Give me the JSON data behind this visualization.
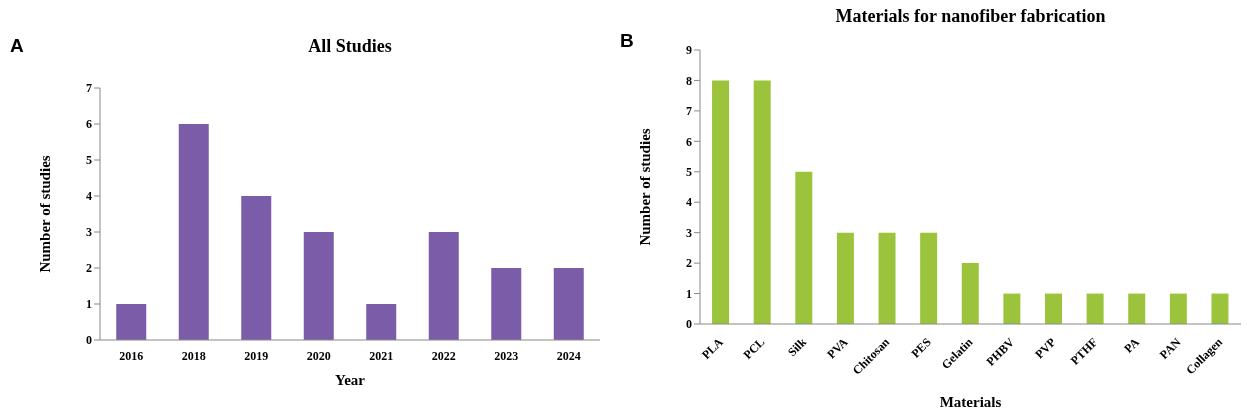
{
  "chart_data": [
    {
      "type": "bar",
      "title": "All Studies",
      "xlabel": "Year",
      "ylabel": "Number of studies",
      "annotations": [
        "A"
      ],
      "categories": [
        "2016",
        "2018",
        "2019",
        "2020",
        "2021",
        "2022",
        "2023",
        "2024"
      ],
      "values": [
        1,
        6,
        4,
        3,
        1,
        3,
        2,
        2
      ],
      "color": "#7b5ca8",
      "ylim": [
        0,
        7
      ],
      "yticks": [
        0,
        1,
        2,
        3,
        4,
        5,
        6,
        7
      ],
      "grid": false,
      "legend": false
    },
    {
      "type": "bar",
      "title": "Materials for nanofiber fabrication",
      "xlabel": "Materials",
      "ylabel": "Number of studies",
      "annotations": [
        "B"
      ],
      "categories": [
        "PLA",
        "PCL",
        "Silk",
        "PVA",
        "Chitosan",
        "PES",
        "Gelatin",
        "PHBV",
        "PVP",
        "PTHF",
        "PA",
        "PAN",
        "Collagen"
      ],
      "values": [
        8,
        8,
        5,
        3,
        3,
        3,
        2,
        1,
        1,
        1,
        1,
        1,
        1
      ],
      "color": "#9bc43c",
      "ylim": [
        0,
        9
      ],
      "yticks": [
        0,
        1,
        2,
        3,
        4,
        5,
        6,
        7,
        8,
        9
      ],
      "grid": false,
      "legend": false
    }
  ]
}
